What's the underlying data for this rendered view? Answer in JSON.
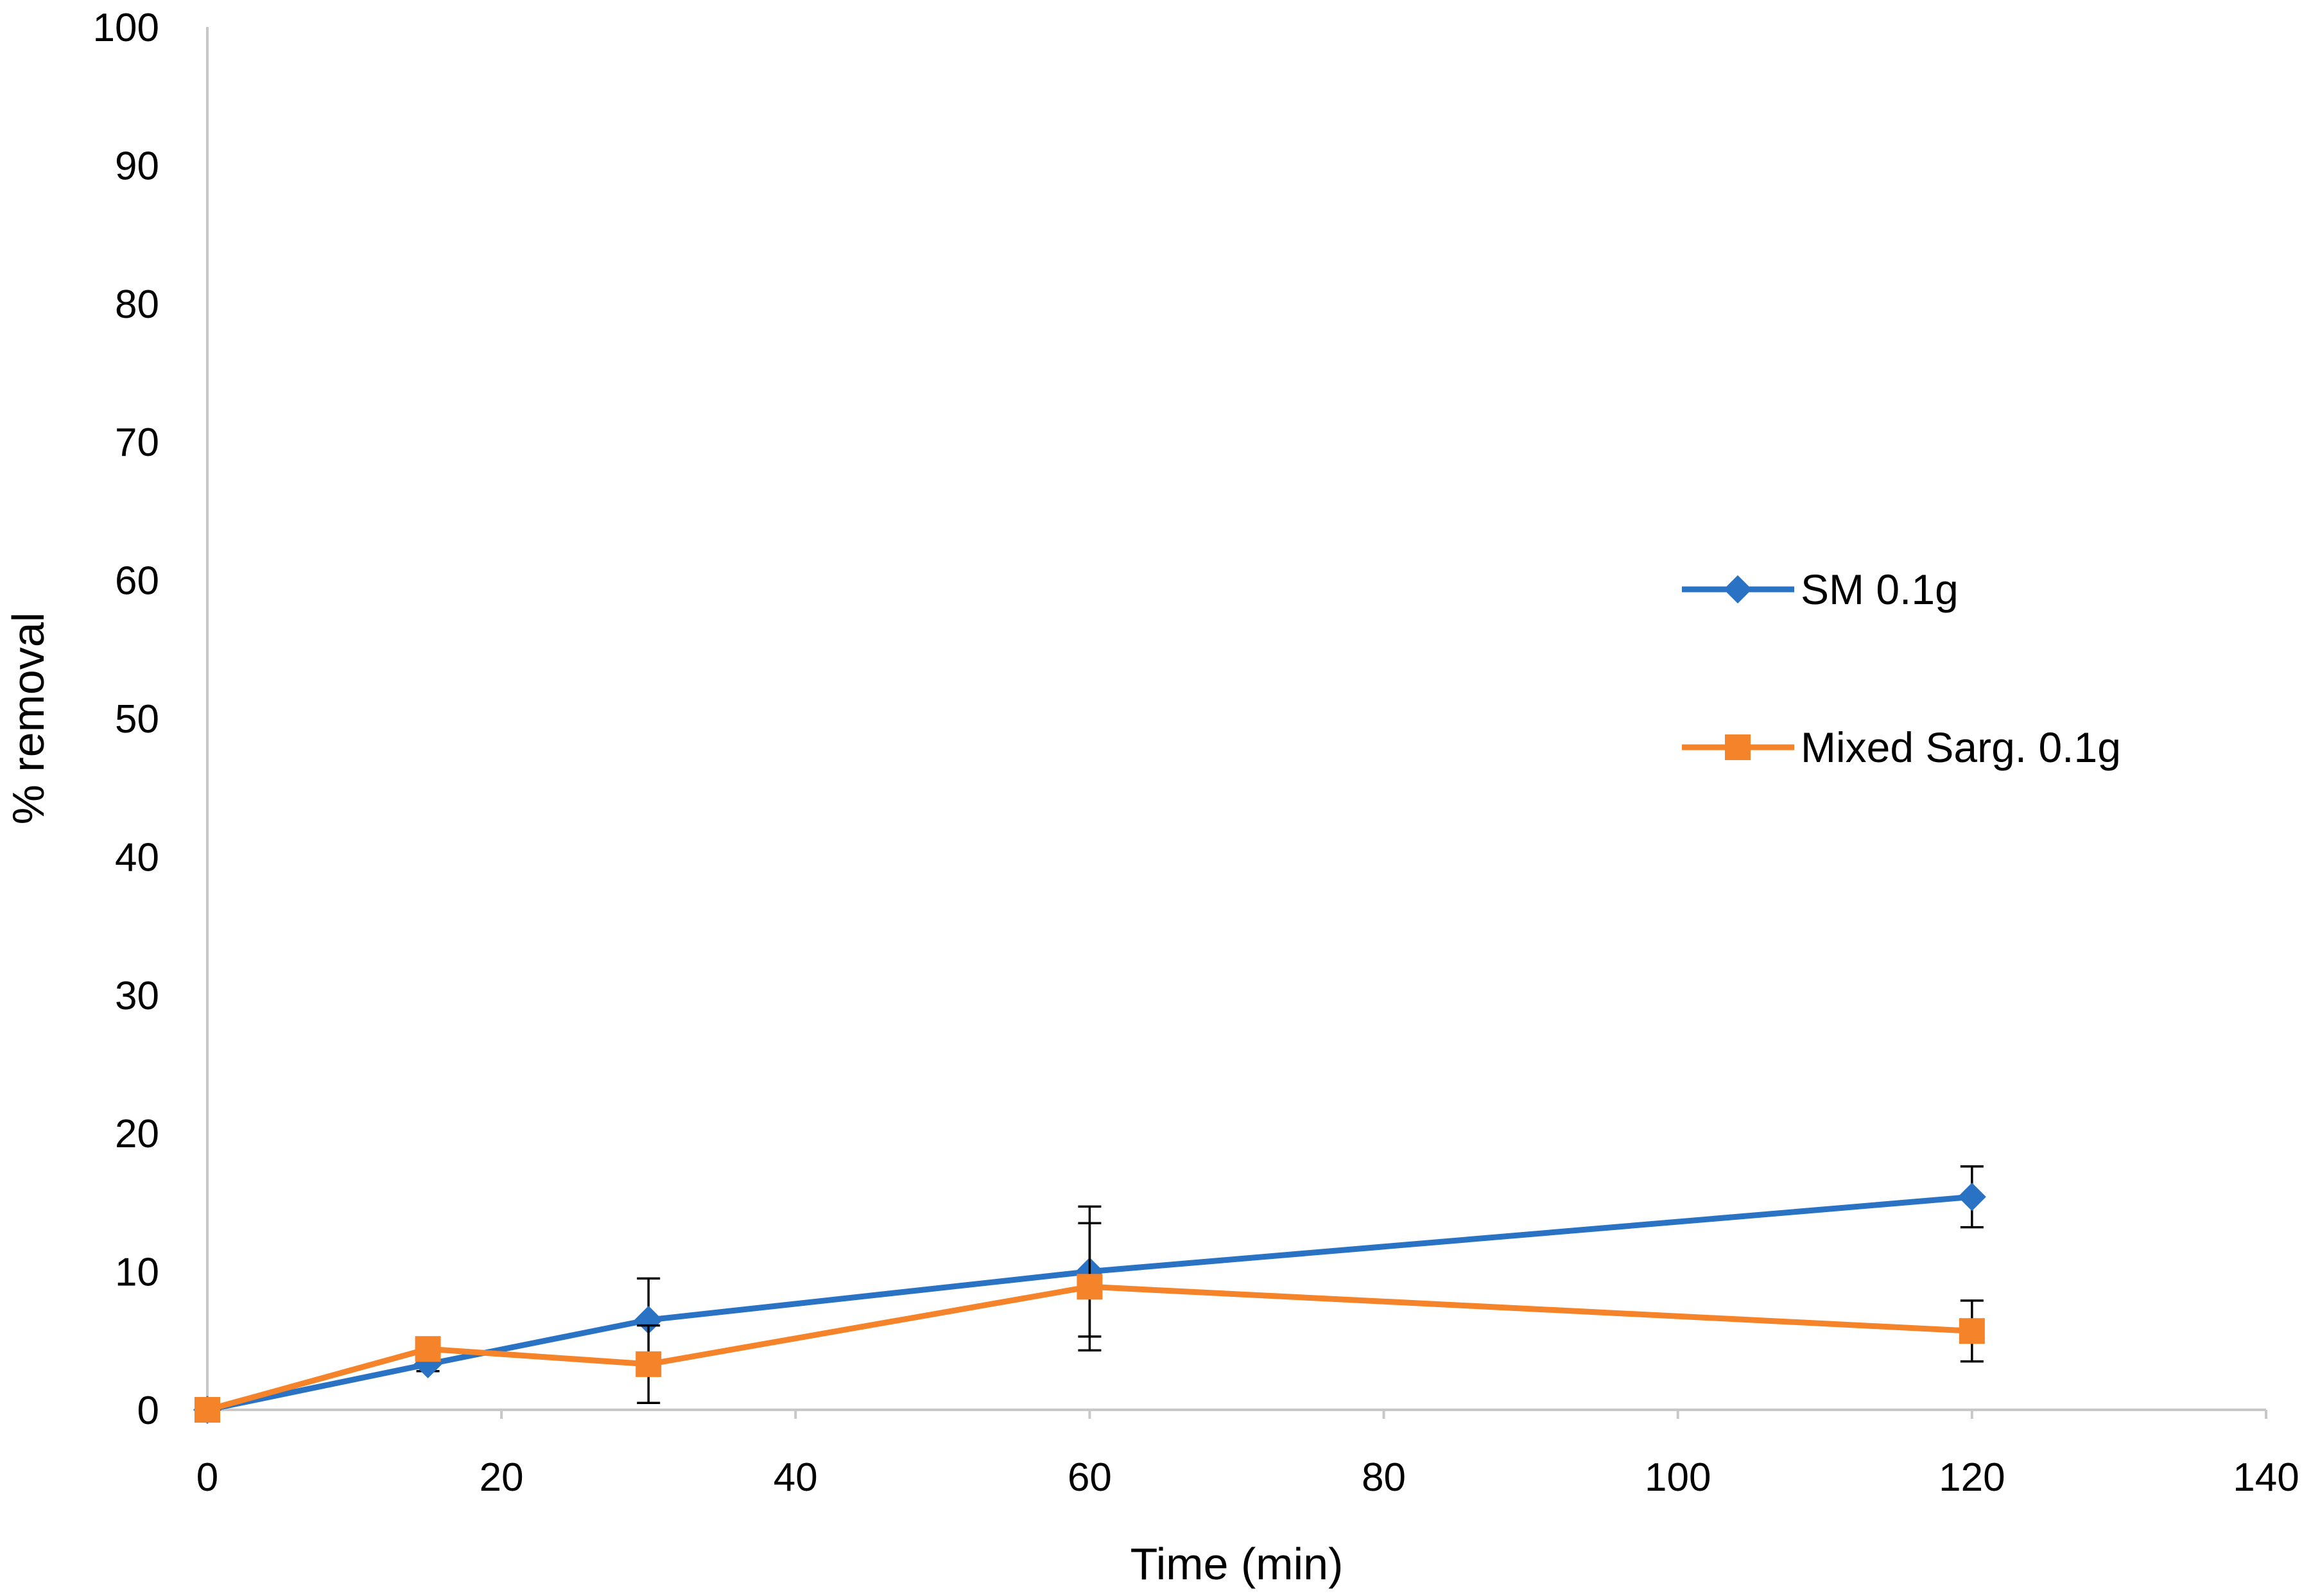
{
  "chart_data": {
    "type": "line",
    "title": "",
    "xlabel": "Time (min)",
    "ylabel": "% removal",
    "xlim": [
      0,
      140
    ],
    "ylim": [
      0,
      100
    ],
    "xticks": [
      0,
      20,
      40,
      60,
      80,
      100,
      120,
      140
    ],
    "yticks": [
      0,
      10,
      20,
      30,
      40,
      50,
      60,
      70,
      80,
      90,
      100
    ],
    "grid": false,
    "legend_position": "right",
    "series": [
      {
        "name": "SM 0.1g",
        "color": "#2a73c4",
        "marker": "diamond",
        "x": [
          0,
          15,
          30,
          60,
          120
        ],
        "y": [
          0,
          3.3,
          6.5,
          10.0,
          15.4
        ],
        "err": [
          0,
          0.5,
          3.0,
          4.7,
          2.2
        ]
      },
      {
        "name": "Mixed Sarg. 0.1g",
        "color": "#f5832a",
        "marker": "square",
        "x": [
          0,
          15,
          30,
          60,
          120
        ],
        "y": [
          0,
          4.4,
          3.3,
          8.9,
          5.7
        ],
        "err": [
          0,
          0.4,
          2.8,
          4.6,
          2.2
        ]
      }
    ]
  }
}
